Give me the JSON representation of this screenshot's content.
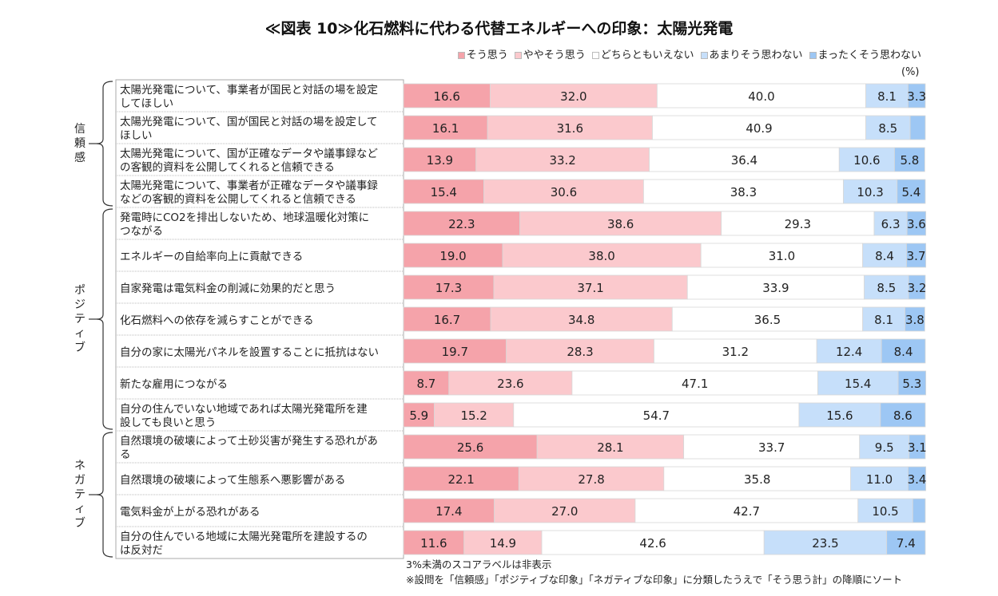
{
  "title": "≪図表 10≫化石燃料に代わる代替エネルギーへの印象：太陽光発電",
  "unit": "(%)",
  "notes": [
    "3%未満のスコアラベルは非表示",
    "※設問を「信頼感」「ポジティブな印象」「ネガティブな印象」に分類したうえで「そう思う計」の降順にソート"
  ],
  "groups": [
    {
      "label": "信頼感",
      "rows": [
        0,
        3
      ]
    },
    {
      "label": "ポジティブ",
      "rows": [
        4,
        10
      ]
    },
    {
      "label": "ネガティブ",
      "rows": [
        11,
        14
      ]
    }
  ],
  "colors": [
    "#f5a3aa",
    "#fbc9cd",
    "#ffffff",
    "#c6dffa",
    "#9dc7f4"
  ],
  "chart_data": {
    "type": "bar",
    "orientation": "horizontal",
    "stacked": true,
    "title": "≪図表 10≫化石燃料に代わる代替エネルギーへの印象：太陽光発電",
    "xlim": [
      0,
      100
    ],
    "legend_position": "top-right",
    "label_threshold": 3,
    "categories": [
      [
        "太陽光発電について、事業者が国民と対話の場を設定",
        "してほしい"
      ],
      [
        "太陽光発電について、国が国民と対話の場を設定して",
        "ほしい"
      ],
      [
        "太陽光発電について、国が正確なデータや議事録など",
        "の客観的資料を公開してくれると信頼できる"
      ],
      [
        "太陽光発電について、事業者が正確なデータや議事録",
        "などの客観的資料を公開してくれると信頼できる"
      ],
      [
        "発電時にCO2を排出しないため、地球温暖化対策に",
        "つながる"
      ],
      [
        "エネルギーの自給率向上に貢献できる"
      ],
      [
        "自家発電は電気料金の削減に効果的だと思う"
      ],
      [
        "化石燃料への依存を減らすことができる"
      ],
      [
        "自分の家に太陽光パネルを設置することに抵抗はない"
      ],
      [
        "新たな雇用につながる"
      ],
      [
        "自分の住んでいない地域であれば太陽光発電所を建",
        "設しても良いと思う"
      ],
      [
        "自然環境の破壊によって土砂災害が発生する恐れがあ",
        "る"
      ],
      [
        "自然環境の破壊によって生態系へ悪影響がある"
      ],
      [
        "電気料金が上がる恐れがある"
      ],
      [
        "自分の住んでいる地域に太陽光発電所を建設するの",
        "は反対だ"
      ]
    ],
    "series": [
      {
        "name": "そう思う",
        "values": [
          16.6,
          16.1,
          13.9,
          15.4,
          22.3,
          19.0,
          17.3,
          16.7,
          19.7,
          8.7,
          5.9,
          25.6,
          22.1,
          17.4,
          11.6
        ]
      },
      {
        "name": "ややそう思う",
        "values": [
          32.0,
          31.6,
          33.2,
          30.6,
          38.6,
          38.0,
          37.1,
          34.8,
          28.3,
          23.6,
          15.2,
          28.1,
          27.8,
          27.0,
          14.9
        ]
      },
      {
        "name": "どちらともいえない",
        "values": [
          40.0,
          40.9,
          36.4,
          38.3,
          29.3,
          31.0,
          33.9,
          36.5,
          31.2,
          47.1,
          54.7,
          33.7,
          35.8,
          42.7,
          42.6
        ]
      },
      {
        "name": "あまりそう思わない",
        "values": [
          8.1,
          8.5,
          10.6,
          10.3,
          6.3,
          8.4,
          8.5,
          8.1,
          12.4,
          15.4,
          15.6,
          9.5,
          11.0,
          10.5,
          23.5
        ]
      },
      {
        "name": "まったくそう思わない",
        "values": [
          3.3,
          2.9,
          5.8,
          5.4,
          3.6,
          3.7,
          3.2,
          3.8,
          8.4,
          5.3,
          8.6,
          3.1,
          3.4,
          2.4,
          7.4
        ]
      }
    ]
  }
}
